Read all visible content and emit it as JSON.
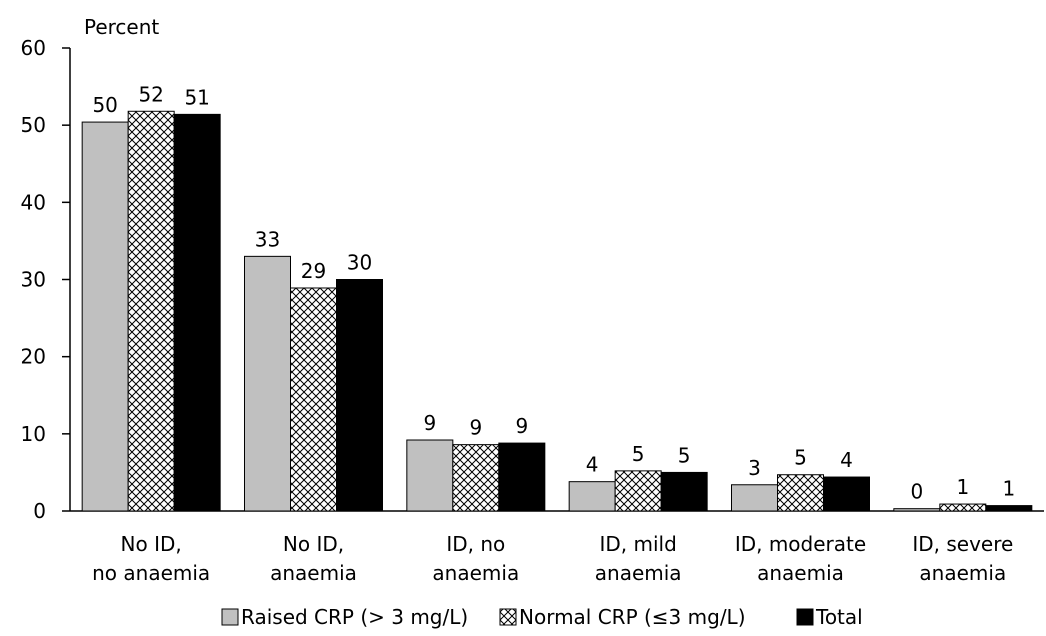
{
  "chart_data": {
    "type": "bar",
    "title": "",
    "ylabel": "Percent",
    "xlabel": "",
    "ylim": [
      0,
      60
    ],
    "yticks": [
      0,
      10,
      20,
      30,
      40,
      50,
      60
    ],
    "grid": false,
    "legend_position": "bottom",
    "categories": [
      [
        "No ID,",
        "no anaemia"
      ],
      [
        "No ID,",
        "anaemia"
      ],
      [
        "ID, no",
        "anaemia"
      ],
      [
        "ID, mild",
        "anaemia"
      ],
      [
        "ID, moderate",
        "anaemia"
      ],
      [
        "ID, severe",
        "anaemia"
      ]
    ],
    "series": [
      {
        "name": "Raised CRP (> 3 mg/L)",
        "style": "solid",
        "color": "#c0c0c0",
        "values": [
          50.4,
          33.0,
          9.2,
          3.8,
          3.4,
          0.3
        ],
        "labels": [
          "50",
          "33",
          "9",
          "4",
          "3",
          "0"
        ]
      },
      {
        "name": "Normal CRP (≤3 mg/L)",
        "style": "crosshatch",
        "color": "#ffffff",
        "values": [
          51.8,
          28.9,
          8.6,
          5.2,
          4.7,
          0.9
        ],
        "labels": [
          "52",
          "29",
          "9",
          "5",
          "5",
          "1"
        ]
      },
      {
        "name": "Total",
        "style": "solid",
        "color": "#000000",
        "values": [
          51.4,
          30.0,
          8.8,
          5.0,
          4.4,
          0.7
        ],
        "labels": [
          "51",
          "30",
          "9",
          "5",
          "4",
          "1"
        ]
      }
    ]
  }
}
